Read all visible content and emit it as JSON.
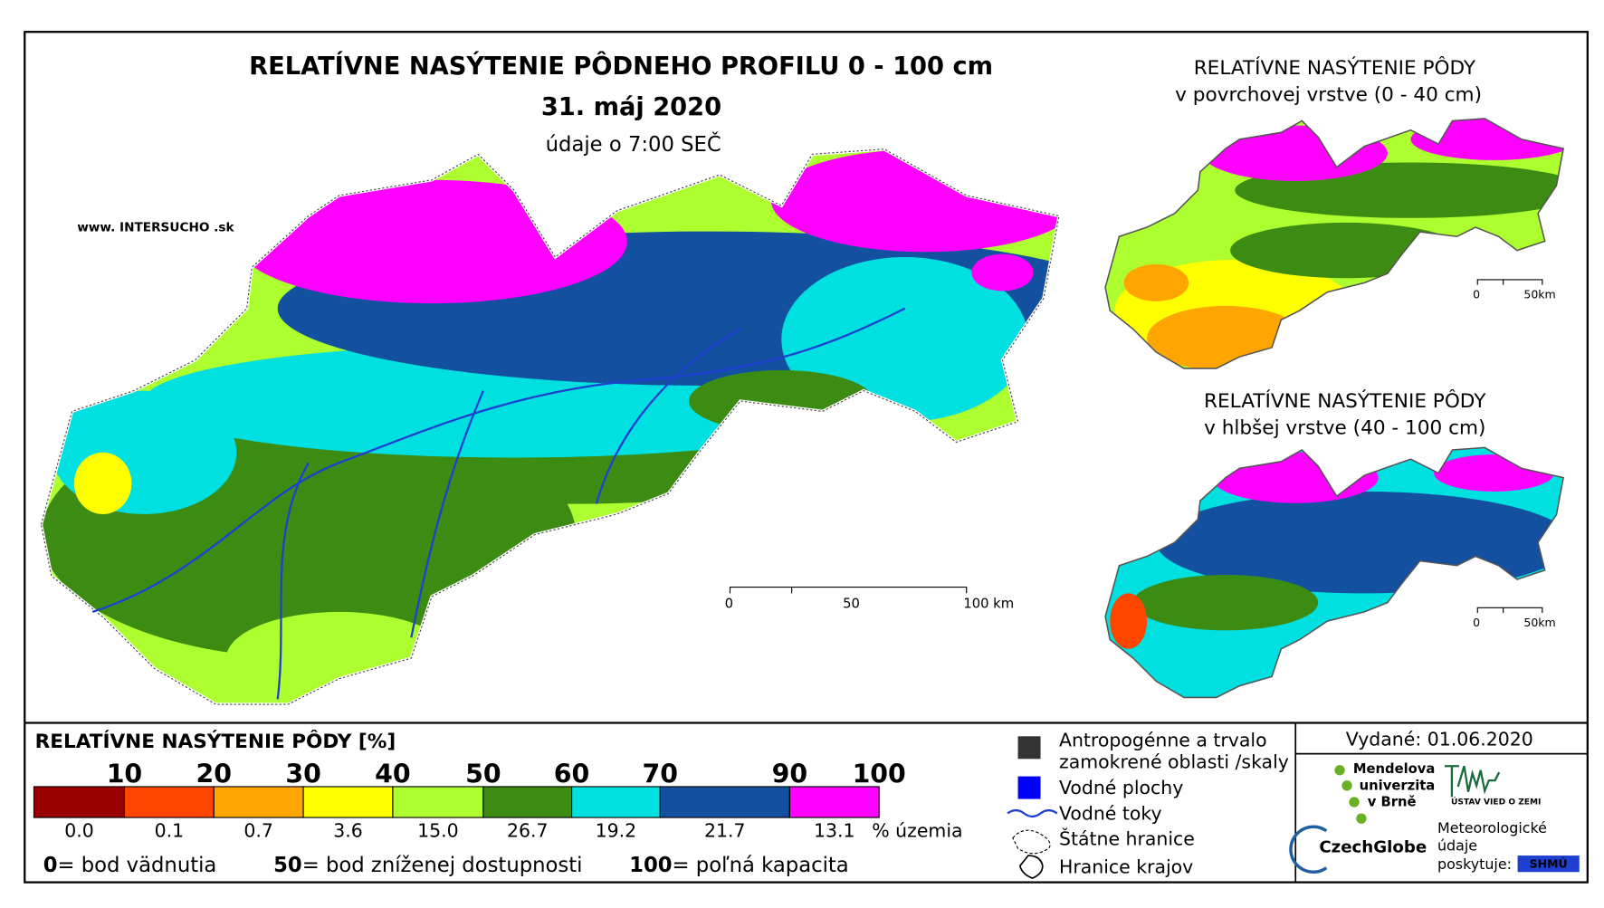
{
  "header": {
    "title": "RELATÍVNE NASÝTENIE PÔDNEHO PROFILU 0 - 100 cm",
    "date": "31. máj 2020",
    "time_note": "údaje o 7:00 SEČ",
    "website": "www. INTERSUCHO .sk"
  },
  "main_map": {
    "scale_labels": [
      "0",
      "50",
      "100 km"
    ]
  },
  "insets": [
    {
      "title": "RELATÍVNE NASÝTENIE PÔDY",
      "subtitle": "v povrchovej vrstve (0 - 40 cm)",
      "scale_labels": [
        "0",
        "50km"
      ]
    },
    {
      "title": "RELATÍVNE NASÝTENIE PÔDY",
      "subtitle": "v hlbšej vrstve (40 - 100 cm)",
      "scale_labels": [
        "0",
        "50km"
      ]
    }
  ],
  "legend": {
    "title": "RELATÍVNE NASÝTENIE PÔDY [%]",
    "thresholds": [
      "10",
      "20",
      "30",
      "40",
      "50",
      "60",
      "70",
      "90",
      "100"
    ],
    "colors": [
      "#9b0000",
      "#ff4500",
      "#ffa500",
      "#ffff00",
      "#adff2f",
      "#3c8c14",
      "#00e0e0",
      "#1450a0",
      "#ff00ff"
    ],
    "shares": [
      "0.0",
      "0.1",
      "0.7",
      "3.6",
      "15.0",
      "26.7",
      "19.2",
      "21.7",
      "13.1"
    ],
    "shares_unit": "% územia",
    "notes": [
      {
        "value": "0",
        "label": "= bod vädnutia"
      },
      {
        "value": "50",
        "label": "= bod zníženej dostupnosti"
      },
      {
        "value": "100",
        "label": "= poľná kapacita"
      }
    ]
  },
  "symbols": [
    "Antropogénne a trvalo",
    "zamokrené oblasti /skaly",
    "Vodné plochy",
    "Vodné toky",
    "Štátne hranice",
    "Hranice krajov"
  ],
  "issued": "Vydané: 01.06.2020",
  "logos": {
    "mendel": [
      "Mendelova",
      "univerzita",
      "v Brně"
    ],
    "czechglobe": "CzechGlobe",
    "uvz": "ÚSTAV VIED O ZEMI",
    "meteo": [
      "Meteorologické",
      "údaje",
      "poskytuje:"
    ],
    "shmu": "SHMÚ"
  }
}
